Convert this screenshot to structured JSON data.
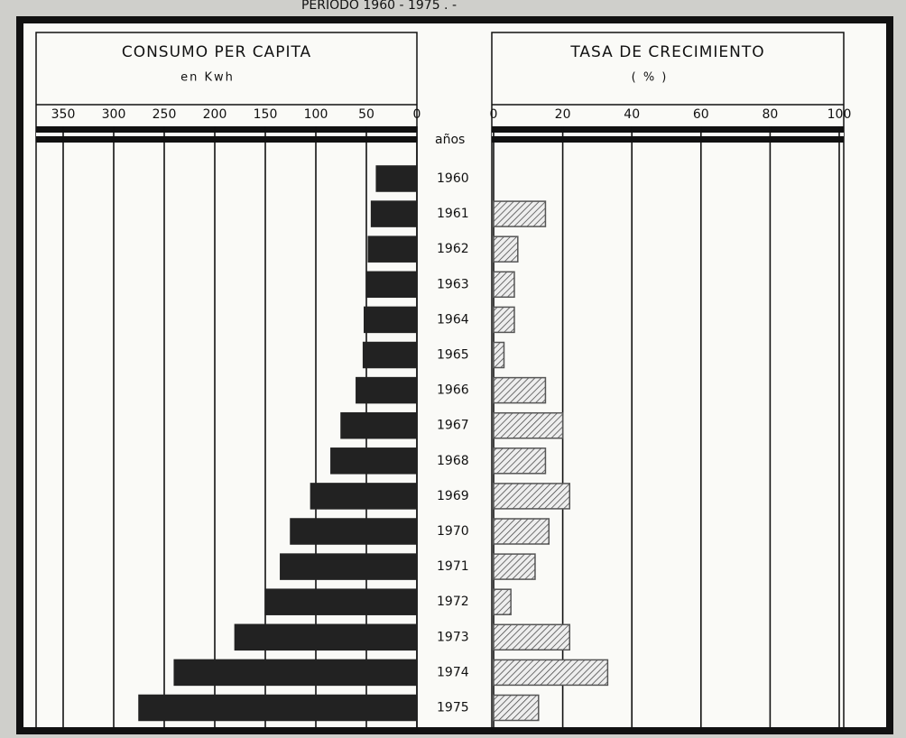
{
  "heading": "PERIODO 1960 - 1975 . -",
  "chart_data": [
    {
      "type": "hbar",
      "title": "CONSUMO PER CAPITA",
      "subtitle": "en Kwh",
      "category_label": "años",
      "categories": [
        "1960",
        "1961",
        "1962",
        "1963",
        "1964",
        "1965",
        "1966",
        "1967",
        "1968",
        "1969",
        "1970",
        "1971",
        "1972",
        "1973",
        "1974",
        "1975"
      ],
      "values": [
        40,
        45,
        48,
        50,
        52,
        53,
        60,
        75,
        85,
        105,
        125,
        135,
        150,
        180,
        240,
        275
      ],
      "color": "#222222",
      "xlim": [
        0,
        375
      ],
      "x_reversed": true,
      "xticks": [
        0,
        50,
        100,
        150,
        200,
        250,
        300,
        350
      ],
      "grid": true
    },
    {
      "type": "hbar",
      "title": "TASA DE CRECIMIENTO",
      "subtitle": "( % )",
      "values": [
        null,
        15,
        7,
        6,
        6,
        3,
        15,
        20,
        15,
        22,
        16,
        12,
        5,
        22,
        33,
        13
      ],
      "color": "#555555",
      "hatch": true,
      "xlim": [
        0,
        100
      ],
      "xticks": [
        0,
        20,
        40,
        60,
        80,
        100
      ],
      "grid": true
    }
  ]
}
